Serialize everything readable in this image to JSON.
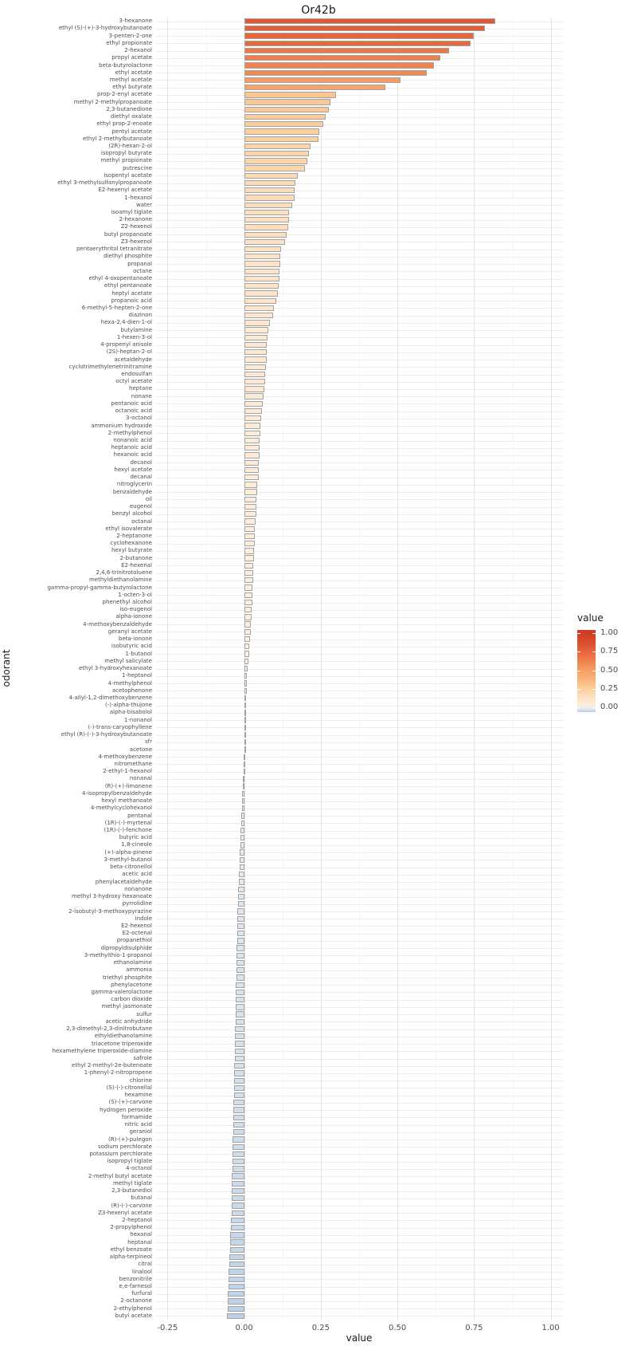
{
  "title": "Or42b",
  "x_axis": {
    "label": "value",
    "ticks": [
      "-0.25",
      "0.00",
      "0.25",
      "0.50",
      "0.75",
      "1.00"
    ],
    "tick_values": [
      -0.25,
      0.0,
      0.25,
      0.5,
      0.75,
      1.0
    ],
    "minor_values": [
      -0.125,
      0.125,
      0.375,
      0.625,
      0.875
    ]
  },
  "y_axis": {
    "label": "odorant"
  },
  "legend": {
    "title": "value",
    "ticks": [
      "1.00",
      "0.75",
      "0.50",
      "0.25",
      "0.00"
    ],
    "tick_values": [
      1.0,
      0.75,
      0.5,
      0.25,
      0.0
    ],
    "top_value": 1.04,
    "bottom_value": -0.06
  },
  "chart_data": {
    "type": "bar",
    "orientation": "horizontal",
    "title": "Or42b",
    "xlabel": "value",
    "ylabel": "odorant",
    "xlim": [
      -0.29,
      1.04
    ],
    "grid": true,
    "legend_position": "right",
    "categories": [
      "3-hexanone",
      "ethyl (S)-(+)-3-hydroxybutanoate",
      "3-penten-2-one",
      "ethyl propionate",
      "2-hexanol",
      "propyl acetate",
      "beta-butyrolactone",
      "ethyl acetate",
      "methyl acetate",
      "ethyl butyrate",
      "prop-2-enyl acetate",
      "methyl 2-methylpropanoate",
      "2,3-butanedione",
      "diethyl oxalate",
      "ethyl prop-2-enoate",
      "pentyl acetate",
      "ethyl 2-methylbutanoate",
      "(2R)-hexan-2-ol",
      "isopropyl butyrate",
      "methyl propionate",
      "putrescine",
      "isopentyl acetate",
      "ethyl 3-methylsulfanylpropanoate",
      "E2-hexenyl acetate",
      "1-hexanol",
      "water",
      "isoamyl tiglate",
      "2-hexanone",
      "Z2-hexenol",
      "butyl propanoate",
      "Z3-hexenol",
      "pentaerythritol tetranitrate",
      "diethyl phosphite",
      "propanal",
      "octane",
      "ethyl 4-oxopentanoate",
      "ethyl pentanoate",
      "heptyl acetate",
      "propanoic acid",
      "6-methyl-5-hepten-2-one",
      "diazinon",
      "hexa-2,4-dien-1-ol",
      "butylamine",
      "1-hexen-3-ol",
      "4-propenyl anisole",
      "(2S)-heptan-2-ol",
      "acetaldehyde",
      "cyclotrimethylenetrinitramine",
      "endosulfan",
      "octyl acetate",
      "heptane",
      "nonane",
      "pentanoic acid",
      "octanoic acid",
      "3-octanol",
      "ammonium hydroxide",
      "2-methylphenol",
      "nonanoic acid",
      "heptanoic acid",
      "hexanoic acid",
      "decanol",
      "hexyl acetate",
      "decanal",
      "nitroglycerin",
      "benzaldehyde",
      "oil",
      "eugenol",
      "benzyl alcohol",
      "octanal",
      "ethyl isovalerate",
      "2-heptanone",
      "cyclohexanone",
      "hexyl butyrate",
      "2-butanone",
      "E2-hexenal",
      "2,4,6-trinitrotoluene",
      "methyldiethanolamine",
      "gamma-propyl-gamma-butyrolactone",
      "1-octen-3-ol",
      "phenethyl alcohol",
      "iso-eugenol",
      "alpha-ionone",
      "4-methoxybenzaldehyde",
      "geranyl acetate",
      "beta-ionone",
      "isobutyric acid",
      "1-butanol",
      "methyl salicylate",
      "ethyl 3-hydroxyhexanoate",
      "1-heptanol",
      "4-methylphenol",
      "acetophenone",
      "4-allyl-1,2-dimethoxybenzene",
      "(-)-alpha-thujone",
      "alpha-bisabolol",
      "1-nonanol",
      "(-)-trans-caryophyllene",
      "ethyl (R)-(-)-3-hydroxybutanoate",
      "sfr",
      "acetone",
      "4-methoxybenzene",
      "nitromethane",
      "2-ethyl-1-hexanol",
      "nonanal",
      "(R)-(+)-limonene",
      "4-isopropylbenzaldehyde",
      "hexyl methanoate",
      "4-methylcyclohexanol",
      "pentanal",
      "(1R)-(-)-myrtenal",
      "(1R)-(-)-fenchone",
      "butyric acid",
      "1,8-cineole",
      "(+)-alpha-pinene",
      "3-methyl-butanol",
      "beta-citronellol",
      "acetic acid",
      "phenylacetaldehyde",
      "nonanone",
      "methyl 3-hydroxy hexanoate",
      "pyrrolidine",
      "2-isobutyl-3-methoxypyrazine",
      "indole",
      "E2-hexenol",
      "E2-octenal",
      "propanethiol",
      "dipropyldisulphide",
      "3-methylthio-1-propanol",
      "ethanolamine",
      "ammonia",
      "triethyl phosphite",
      "phenylacetone",
      "gamma-valerolactone",
      "carbon dioxide",
      "methyl jasmonate",
      "sulfur",
      "acetic anhydride",
      "2,3-dimethyl-2,3-dinitrobutane",
      "ethyldiethanolamine",
      "triacetone triperoxide",
      "hexamethylene triperoxide-diamine",
      "safrole",
      "ethyl 2-methyl-2e-butenoate",
      "1-phenyl-2-nitropropene",
      "chlorine",
      "(S)-(-)-citronellal",
      "hexamine",
      "(S)-(+)-carvone",
      "hydrogen peroxide",
      "formamide",
      "nitric acid",
      "geraniol",
      "(R)-(+)-pulegon",
      "sodium perchlorate",
      "potassium perchlorate",
      "isopropyl tiglate",
      "4-octanol",
      "2-methyl butyl acetate",
      "methyl tiglate",
      "2,3-butanediol",
      "butanal",
      "(R)-(-)-carvone",
      "Z3-hexenyl acetate",
      "2-heptanol",
      "2-propylphenol",
      "hexanal",
      "heptanal",
      "ethyl benzoate",
      "alpha-terpineol",
      "citral",
      "linalool",
      "benzonitrile",
      "e,e-farnesol",
      "furfural",
      "2-octanone",
      "2-ethylphenol",
      "butyl acetate"
    ],
    "values": [
      0.82,
      0.785,
      0.75,
      0.74,
      0.67,
      0.64,
      0.62,
      0.595,
      0.51,
      0.46,
      0.3,
      0.282,
      0.276,
      0.266,
      0.259,
      0.246,
      0.242,
      0.216,
      0.211,
      0.206,
      0.199,
      0.176,
      0.168,
      0.166,
      0.164,
      0.158,
      0.147,
      0.146,
      0.144,
      0.139,
      0.133,
      0.12,
      0.118,
      0.117,
      0.116,
      0.115,
      0.113,
      0.11,
      0.105,
      0.096,
      0.094,
      0.084,
      0.079,
      0.077,
      0.075,
      0.074,
      0.073,
      0.071,
      0.07,
      0.068,
      0.066,
      0.064,
      0.06,
      0.058,
      0.056,
      0.054,
      0.052,
      0.051,
      0.051,
      0.05,
      0.049,
      0.048,
      0.047,
      0.044,
      0.043,
      0.041,
      0.04,
      0.039,
      0.037,
      0.036,
      0.035,
      0.034,
      0.033,
      0.032,
      0.031,
      0.03,
      0.029,
      0.028,
      0.027,
      0.026,
      0.025,
      0.024,
      0.023,
      0.022,
      0.02,
      0.018,
      0.016,
      0.014,
      0.012,
      0.01,
      0.009,
      0.008,
      0.007,
      0.006,
      0.005,
      0.004,
      0.003,
      0.002,
      0.001,
      0.0,
      -0.001,
      -0.002,
      -0.003,
      -0.004,
      -0.005,
      -0.006,
      -0.007,
      -0.008,
      -0.009,
      -0.01,
      -0.011,
      -0.012,
      -0.013,
      -0.014,
      -0.015,
      -0.016,
      -0.017,
      -0.018,
      -0.019,
      -0.02,
      -0.021,
      -0.0215,
      -0.022,
      -0.0225,
      -0.023,
      -0.0235,
      -0.024,
      -0.0245,
      -0.025,
      -0.0255,
      -0.026,
      -0.0265,
      -0.027,
      -0.0275,
      -0.028,
      -0.0285,
      -0.029,
      -0.0295,
      -0.03,
      -0.0305,
      -0.031,
      -0.0315,
      -0.032,
      -0.0325,
      -0.033,
      -0.0335,
      -0.034,
      -0.0345,
      -0.035,
      -0.0355,
      -0.036,
      -0.0365,
      -0.037,
      -0.0375,
      -0.038,
      -0.0385,
      -0.039,
      -0.0395,
      -0.04,
      -0.0405,
      -0.041,
      -0.0415,
      -0.042,
      -0.043,
      -0.044,
      -0.045,
      -0.046,
      -0.047,
      -0.048,
      -0.049,
      -0.05,
      -0.051,
      -0.052,
      -0.053,
      -0.054,
      -0.055,
      -0.056
    ],
    "color_scale": {
      "type": "diverging",
      "midpoint": 0,
      "positive_max": 1.0,
      "negative_min": -0.06,
      "positive_stops": [
        [
          0.0,
          "#fdf1e3"
        ],
        [
          0.12,
          "#fde3c6"
        ],
        [
          0.25,
          "#fbcf9d"
        ],
        [
          0.4,
          "#f8b076"
        ],
        [
          0.55,
          "#f4935c"
        ],
        [
          0.7,
          "#eb7042"
        ],
        [
          0.85,
          "#dc512f"
        ],
        [
          1.0,
          "#ce3b23"
        ]
      ],
      "negative_stops": [
        [
          0.0,
          "#f4f3f0"
        ],
        [
          0.35,
          "#dfe7f0"
        ],
        [
          0.7,
          "#c9daea"
        ],
        [
          1.0,
          "#b6cfe6"
        ]
      ]
    }
  }
}
